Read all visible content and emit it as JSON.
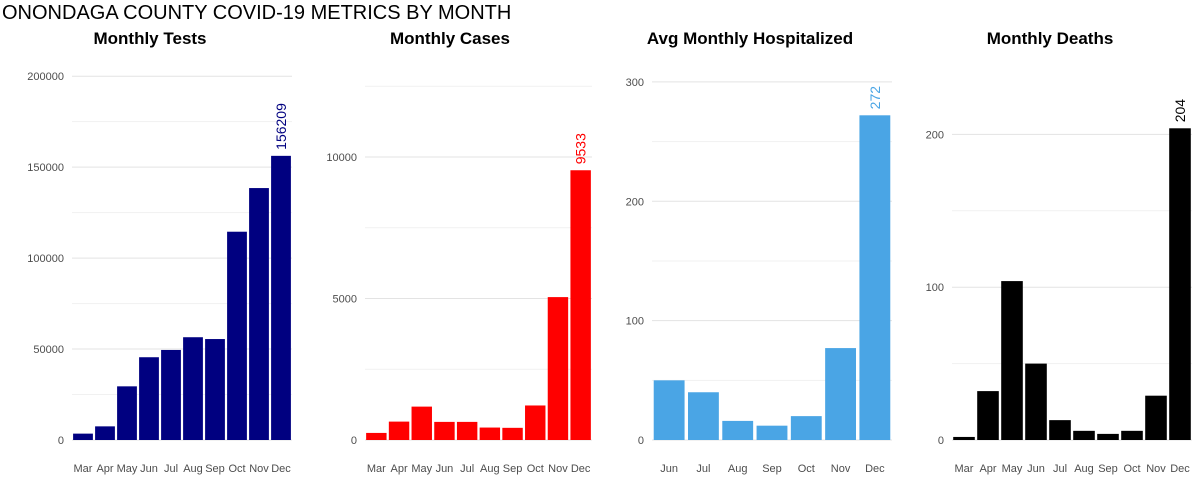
{
  "title": "ONONDAGA COUNTY COVID-19 METRICS BY MONTH",
  "chart_data": [
    {
      "type": "bar",
      "title": "Monthly Tests",
      "color": "#000080",
      "categories": [
        "Mar",
        "Apr",
        "May",
        "Jun",
        "Jul",
        "Aug",
        "Sep",
        "Oct",
        "Nov",
        "Dec"
      ],
      "values": [
        3500,
        7500,
        29500,
        45500,
        49500,
        56500,
        55500,
        114500,
        138500,
        156209
      ],
      "ylim": [
        0,
        210000
      ],
      "yticks": [
        0,
        50000,
        100000,
        150000,
        200000
      ],
      "ytick_labels": [
        "0",
        "50000",
        "100000",
        "150000",
        "200000"
      ],
      "data_label": "156209",
      "grid": true
    },
    {
      "type": "bar",
      "title": "Monthly Cases",
      "color": "#ff0000",
      "categories": [
        "Mar",
        "Apr",
        "May",
        "Jun",
        "Jul",
        "Aug",
        "Sep",
        "Oct",
        "Nov",
        "Dec"
      ],
      "values": [
        250,
        650,
        1180,
        640,
        640,
        440,
        430,
        1220,
        5050,
        9533
      ],
      "ylim": [
        0,
        13500
      ],
      "yticks": [
        0,
        5000,
        10000
      ],
      "ytick_labels": [
        "0",
        "5000",
        "10000"
      ],
      "data_label": "9533",
      "grid": true
    },
    {
      "type": "bar",
      "title": "Avg Monthly Hospitalized",
      "color": "#4aa5e5",
      "categories": [
        "Jun",
        "Jul",
        "Aug",
        "Sep",
        "Oct",
        "Nov",
        "Dec"
      ],
      "values": [
        50,
        40,
        16,
        12,
        20,
        77,
        272
      ],
      "ylim": [
        0,
        320
      ],
      "yticks": [
        0,
        100,
        200,
        300
      ],
      "ytick_labels": [
        "0",
        "100",
        "200",
        "300"
      ],
      "data_label": "272",
      "grid": true
    },
    {
      "type": "bar",
      "title": "Monthly Deaths",
      "color": "#000000",
      "categories": [
        "Mar",
        "Apr",
        "May",
        "Jun",
        "Jul",
        "Aug",
        "Sep",
        "Oct",
        "Nov",
        "Dec"
      ],
      "values": [
        2,
        32,
        104,
        50,
        13,
        6,
        4,
        6,
        29,
        204
      ],
      "ylim": [
        0,
        250
      ],
      "yticks": [
        0,
        100,
        200
      ],
      "ytick_labels": [
        "0",
        "100",
        "200"
      ],
      "data_label": "204",
      "grid": true
    }
  ]
}
